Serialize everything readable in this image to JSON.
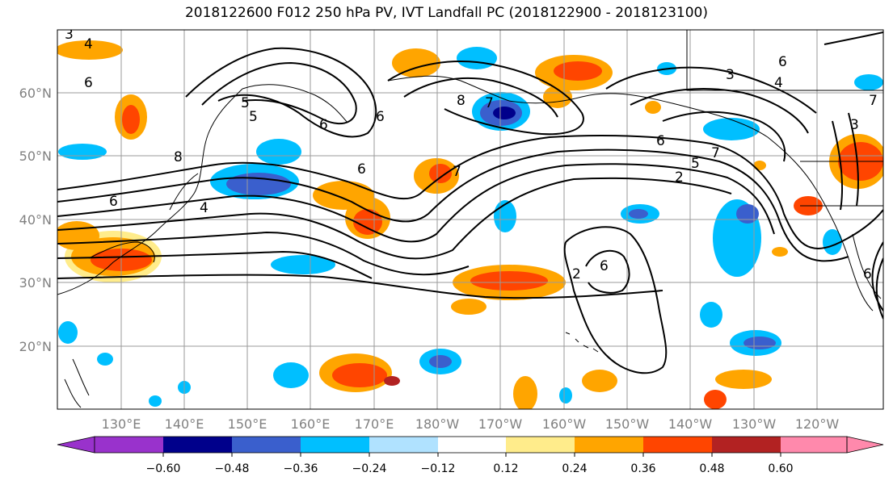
{
  "title": "2018122600 F012 250 hPa PV, IVT Landfall PC (2018122900 - 2018123100)",
  "lat_labels": [
    "60°N",
    "50°N",
    "40°N",
    "30°N",
    "20°N"
  ],
  "lon_labels": [
    "130°E",
    "140°E",
    "150°E",
    "160°E",
    "170°E",
    "180°W",
    "170°W",
    "160°W",
    "150°W",
    "140°W",
    "130°W",
    "120°W"
  ],
  "colorbar": {
    "tick_labels": [
      "−0.60",
      "−0.48",
      "−0.36",
      "−0.24",
      "−0.12",
      "0.12",
      "0.24",
      "0.36",
      "0.48",
      "0.60"
    ],
    "colors": [
      "#9932CC",
      "#00008B",
      "#3A5FCD",
      "#00BFFF",
      "#B0E2FF",
      "#FFFFFF",
      "#FFEC8B",
      "#FFA500",
      "#FF4500",
      "#B22222",
      "#FF89AC"
    ]
  },
  "contour_labels": [
    "3",
    "4",
    "6",
    "5",
    "8",
    "6",
    "6",
    "4",
    "5",
    "6",
    "7",
    "6",
    "8",
    "7",
    "3",
    "4",
    "6",
    "7",
    "5",
    "2",
    "6",
    "2",
    "6",
    "3",
    "6",
    "7"
  ]
}
